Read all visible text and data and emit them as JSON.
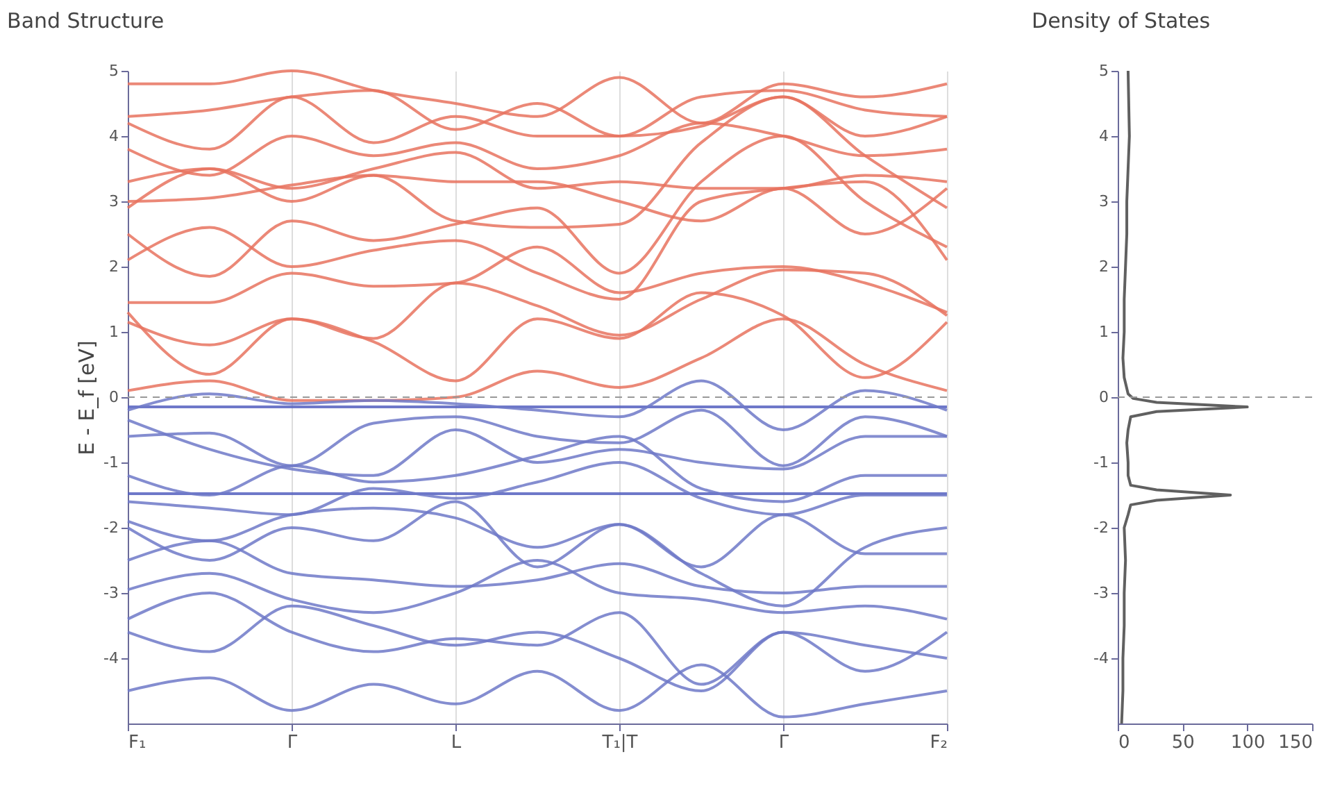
{
  "chart_data": [
    {
      "type": "line",
      "title": "Band Structure",
      "ylabel": "E - E_f [eV]",
      "categories": [
        "F₁",
        null,
        "Γ",
        null,
        "L",
        null,
        "T₁|T",
        null,
        "Γ",
        null,
        "F₂"
      ],
      "ylim": [
        -5,
        5
      ],
      "yticks": [
        -4,
        -3,
        -2,
        -1,
        0,
        1,
        2,
        3,
        4,
        5
      ],
      "grid": "x",
      "ref_lines": [
        {
          "axis": "y",
          "value": 0,
          "line_style": "dashed",
          "color": "#999999"
        }
      ],
      "series": [
        {
          "color": "#e8735f",
          "values": [
            0.1,
            0.25,
            -0.05,
            -0.05,
            0.0,
            0.4,
            0.15,
            0.6,
            1.2,
            0.5,
            0.1
          ]
        },
        {
          "color": "#e8735f",
          "values": [
            1.15,
            0.8,
            1.2,
            0.85,
            0.25,
            1.2,
            0.9,
            1.6,
            1.25,
            0.3,
            1.15
          ]
        },
        {
          "color": "#e8735f",
          "values": [
            1.3,
            0.35,
            1.2,
            0.9,
            1.75,
            1.4,
            0.95,
            1.5,
            1.95,
            1.9,
            1.25
          ]
        },
        {
          "color": "#e8735f",
          "values": [
            1.45,
            1.45,
            1.9,
            1.7,
            1.75,
            2.3,
            1.6,
            1.9,
            2.0,
            1.75,
            1.3
          ]
        },
        {
          "color": "#e8735f",
          "values": [
            2.1,
            2.6,
            2.0,
            2.25,
            2.4,
            1.9,
            1.5,
            3.0,
            3.2,
            3.3,
            2.1
          ]
        },
        {
          "color": "#e8735f",
          "values": [
            2.5,
            1.85,
            2.7,
            2.4,
            2.65,
            2.9,
            1.9,
            3.3,
            4.0,
            3.0,
            2.3
          ]
        },
        {
          "color": "#e8735f",
          "values": [
            2.9,
            3.5,
            3.0,
            3.4,
            2.7,
            2.6,
            2.65,
            3.9,
            4.6,
            3.7,
            2.9
          ]
        },
        {
          "color": "#e8735f",
          "values": [
            3.0,
            3.05,
            3.25,
            3.4,
            3.3,
            3.3,
            3.0,
            2.7,
            3.2,
            2.5,
            3.2
          ]
        },
        {
          "color": "#e8735f",
          "values": [
            3.3,
            3.5,
            3.2,
            3.5,
            3.75,
            3.2,
            3.3,
            3.2,
            3.2,
            3.4,
            3.3
          ]
        },
        {
          "color": "#e8735f",
          "values": [
            3.8,
            3.4,
            4.0,
            3.7,
            3.9,
            3.5,
            3.7,
            4.2,
            4.0,
            3.7,
            3.8
          ]
        },
        {
          "color": "#e8735f",
          "values": [
            4.2,
            3.8,
            4.6,
            3.9,
            4.3,
            4.0,
            4.0,
            4.15,
            4.6,
            4.0,
            4.3
          ]
        },
        {
          "color": "#e8735f",
          "values": [
            4.3,
            4.4,
            4.6,
            4.7,
            4.1,
            4.5,
            4.0,
            4.6,
            4.7,
            4.4,
            4.3
          ]
        },
        {
          "color": "#e8735f",
          "values": [
            4.8,
            4.8,
            5.0,
            4.7,
            4.5,
            4.3,
            4.9,
            4.2,
            4.8,
            4.6,
            4.8
          ]
        },
        {
          "color": "#5560c0",
          "values": [
            -0.15,
            -0.15,
            -0.15,
            -0.15,
            -0.15,
            -0.15,
            -0.15,
            -0.15,
            -0.15,
            -0.15,
            -0.15
          ]
        },
        {
          "color": "#6f79c8",
          "values": [
            -0.2,
            0.05,
            -0.1,
            -0.05,
            -0.1,
            -0.2,
            -0.3,
            0.25,
            -0.5,
            0.1,
            -0.2
          ]
        },
        {
          "color": "#6f79c8",
          "values": [
            -0.6,
            -0.55,
            -1.05,
            -0.4,
            -0.3,
            -0.6,
            -0.7,
            -0.2,
            -1.05,
            -0.3,
            -0.6
          ]
        },
        {
          "color": "#6f79c8",
          "values": [
            -0.35,
            -0.8,
            -1.1,
            -1.2,
            -0.5,
            -1.0,
            -0.8,
            -1.0,
            -1.1,
            -0.6,
            -0.6
          ]
        },
        {
          "color": "#5560c0",
          "values": [
            -1.48,
            -1.48,
            -1.48,
            -1.48,
            -1.48,
            -1.48,
            -1.48,
            -1.48,
            -1.48,
            -1.48,
            -1.48
          ]
        },
        {
          "color": "#6f79c8",
          "values": [
            -1.2,
            -1.5,
            -1.05,
            -1.3,
            -1.2,
            -0.9,
            -0.6,
            -1.4,
            -1.6,
            -1.2,
            -1.2
          ]
        },
        {
          "color": "#6f79c8",
          "values": [
            -1.6,
            -1.7,
            -1.8,
            -1.4,
            -1.55,
            -1.3,
            -1.0,
            -1.55,
            -1.8,
            -1.5,
            -1.5
          ]
        },
        {
          "color": "#6f79c8",
          "values": [
            -1.9,
            -2.2,
            -1.8,
            -1.7,
            -1.85,
            -2.3,
            -1.95,
            -2.7,
            -3.2,
            -2.3,
            -2.0
          ]
        },
        {
          "color": "#6f79c8",
          "values": [
            -2.0,
            -2.5,
            -2.0,
            -2.2,
            -1.6,
            -2.6,
            -1.95,
            -2.6,
            -1.8,
            -2.4,
            -2.4
          ]
        },
        {
          "color": "#6f79c8",
          "values": [
            -2.5,
            -2.2,
            -2.7,
            -2.8,
            -2.9,
            -2.8,
            -2.55,
            -2.9,
            -3.0,
            -2.9,
            -2.9
          ]
        },
        {
          "color": "#6f79c8",
          "values": [
            -2.95,
            -2.7,
            -3.1,
            -3.3,
            -3.0,
            -2.5,
            -3.0,
            -3.1,
            -3.3,
            -3.2,
            -3.4
          ]
        },
        {
          "color": "#6f79c8",
          "values": [
            -3.4,
            -3.0,
            -3.6,
            -3.9,
            -3.7,
            -3.8,
            -3.3,
            -4.4,
            -3.6,
            -4.2,
            -3.6
          ]
        },
        {
          "color": "#6f79c8",
          "values": [
            -3.6,
            -3.9,
            -3.2,
            -3.5,
            -3.8,
            -3.6,
            -4.0,
            -4.5,
            -3.6,
            -3.8,
            -4.0
          ]
        },
        {
          "color": "#6f79c8",
          "values": [
            -4.5,
            -4.3,
            -4.8,
            -4.4,
            -4.7,
            -4.2,
            -4.8,
            -4.1,
            -4.9,
            -4.7,
            -4.5
          ]
        }
      ]
    },
    {
      "type": "line",
      "title": "Density of States",
      "xlim": [
        0,
        150
      ],
      "xticks": [
        0,
        50,
        100,
        150
      ],
      "ylim": [
        -5,
        5
      ],
      "yticks": [
        -4,
        -3,
        -2,
        -1,
        0,
        1,
        2,
        3,
        4,
        5
      ],
      "grid": false,
      "ref_lines": [
        {
          "axis": "y",
          "value": 0,
          "line_style": "dashed",
          "color": "#999999"
        }
      ],
      "series": [
        {
          "color": "#444444",
          "x": [
            3,
            4,
            4,
            5,
            5,
            6,
            5,
            8,
            10,
            30,
            87,
            30,
            10,
            8,
            8,
            7,
            8,
            10,
            30,
            100,
            30,
            12,
            8,
            5,
            4,
            5,
            5,
            6,
            7,
            7,
            8,
            9,
            8
          ],
          "values": [
            -5,
            -4.5,
            -4,
            -3.5,
            -3,
            -2.5,
            -2,
            -1.8,
            -1.65,
            -1.58,
            -1.5,
            -1.42,
            -1.35,
            -1.2,
            -1,
            -0.7,
            -0.5,
            -0.3,
            -0.22,
            -0.15,
            -0.08,
            -0.02,
            0.05,
            0.3,
            0.6,
            1,
            1.5,
            2,
            2.5,
            3,
            3.5,
            4,
            5
          ]
        }
      ]
    }
  ]
}
